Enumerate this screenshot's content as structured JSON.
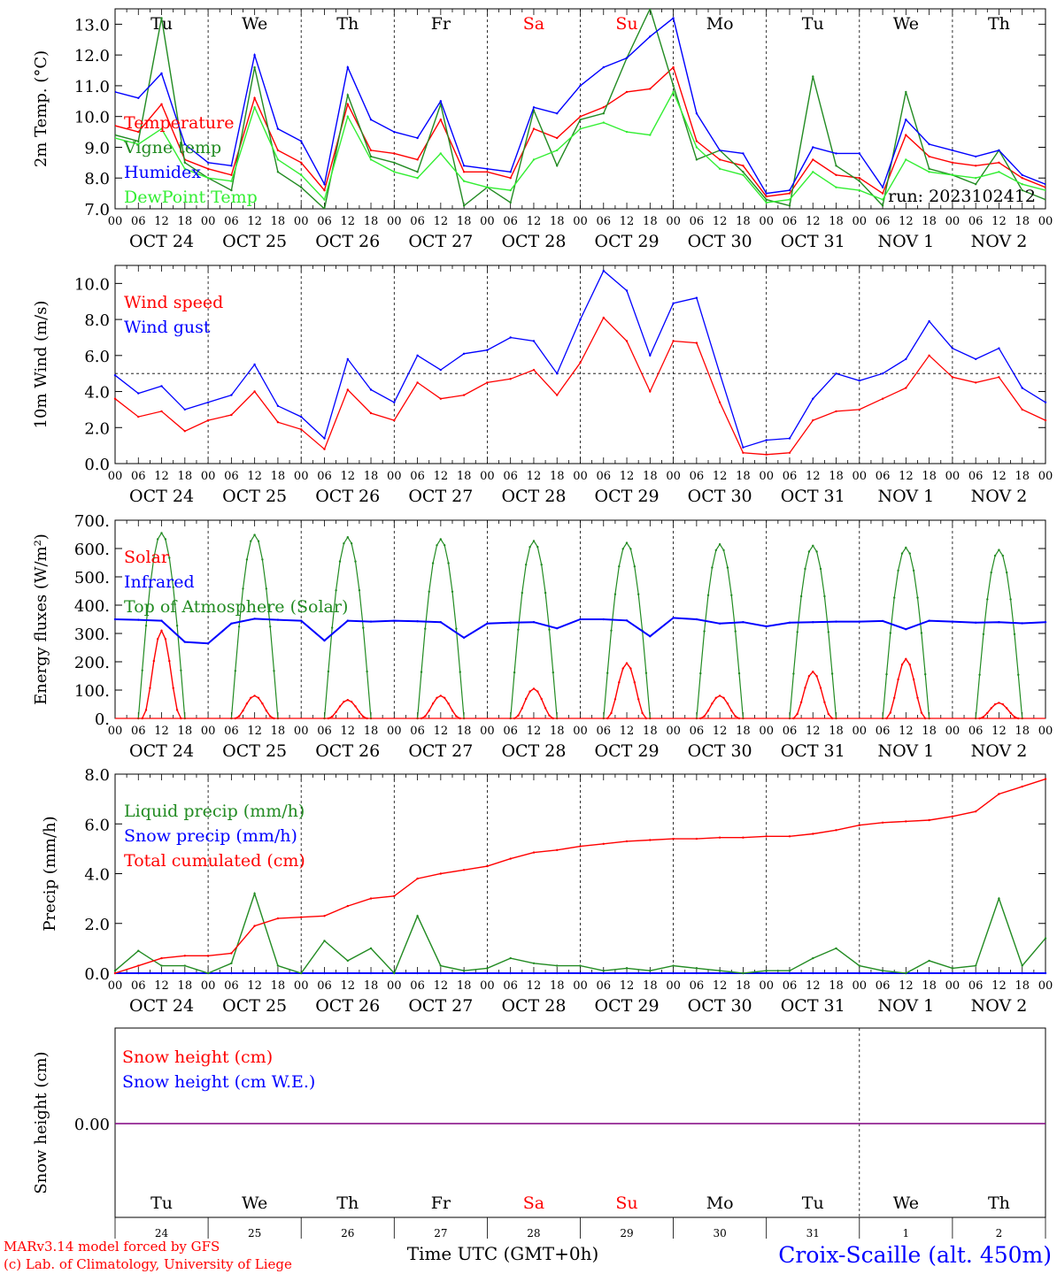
{
  "weekdays": [
    {
      "label": "Tu",
      "weekend": false
    },
    {
      "label": "We",
      "weekend": false
    },
    {
      "label": "Th",
      "weekend": false
    },
    {
      "label": "Fr",
      "weekend": false
    },
    {
      "label": "Sa",
      "weekend": true
    },
    {
      "label": "Su",
      "weekend": true
    },
    {
      "label": "Mo",
      "weekend": false
    },
    {
      "label": "Tu",
      "weekend": false
    },
    {
      "label": "We",
      "weekend": false
    },
    {
      "label": "Th",
      "weekend": false
    }
  ],
  "dates": [
    "OCT 24",
    "OCT 25",
    "OCT 26",
    "OCT 27",
    "OCT 28",
    "OCT 29",
    "OCT 30",
    "OCT 31",
    "NOV  1",
    "NOV  2"
  ],
  "day_numbers": [
    "24",
    "25",
    "26",
    "27",
    "28",
    "29",
    "30",
    "31",
    "1",
    "2"
  ],
  "hour_ticks": [
    "00",
    "06",
    "12",
    "18"
  ],
  "run_label": "run: 2023102412",
  "footer": {
    "credit_line1": "MARv3.14 model forced by GFS",
    "credit_line2": "(c) Lab. of Climatology, University of Liege",
    "time_label": "Time UTC (GMT+0h)",
    "station": "Croix-Scaille (alt. 450m)"
  },
  "colors": {
    "red": "#ff0000",
    "darkgreen": "#228b22",
    "blue": "#0000ff",
    "lightgreen": "#33ee33",
    "purple": "#800080",
    "weekend": "#ff0000"
  },
  "chart_data": [
    {
      "type": "line",
      "ylabel": "2m Temp. (°C)",
      "ylim": [
        7.0,
        13.5
      ],
      "yticks": [
        "7.0",
        "8.0",
        "9.0",
        "10.0",
        "11.0",
        "12.0",
        "13.0"
      ],
      "x_hours_from_oct24_00": [
        0,
        6,
        12,
        18,
        24,
        30,
        36,
        42,
        48,
        54,
        60,
        66,
        72,
        78,
        84,
        90,
        96,
        102,
        108,
        114,
        120,
        126,
        132,
        138,
        144,
        150,
        156,
        162,
        168,
        174,
        180,
        186,
        192,
        198,
        204,
        210,
        216,
        222,
        228,
        234,
        240
      ],
      "series": [
        {
          "name": "Temperature",
          "color": "red",
          "values": [
            9.7,
            9.5,
            10.4,
            8.6,
            8.3,
            8.1,
            10.6,
            8.9,
            8.5,
            7.6,
            10.4,
            8.9,
            8.8,
            8.6,
            9.9,
            8.2,
            8.2,
            8.0,
            9.6,
            9.3,
            10.0,
            10.3,
            10.8,
            10.9,
            11.6,
            9.2,
            8.6,
            8.4,
            7.4,
            7.5,
            8.6,
            8.1,
            8.0,
            7.5,
            9.4,
            8.7,
            8.5,
            8.4,
            8.5,
            8.0,
            7.7
          ]
        },
        {
          "name": "Vigne temp",
          "color": "darkgreen",
          "values": [
            9.4,
            9.2,
            13.2,
            8.5,
            8.0,
            7.6,
            11.6,
            8.2,
            7.7,
            7.0,
            10.7,
            8.7,
            8.5,
            8.2,
            10.4,
            7.1,
            7.7,
            7.2,
            10.2,
            8.4,
            9.9,
            10.1,
            11.9,
            13.5,
            11.0,
            8.6,
            8.9,
            8.2,
            7.3,
            7.1,
            11.3,
            8.4,
            7.9,
            7.1,
            10.8,
            8.3,
            8.1,
            7.8,
            8.9,
            7.6,
            7.3
          ]
        },
        {
          "name": "Humidex",
          "color": "blue",
          "values": [
            10.8,
            10.6,
            11.4,
            9.1,
            8.5,
            8.4,
            12.0,
            9.6,
            9.2,
            7.8,
            11.6,
            9.9,
            9.5,
            9.3,
            10.5,
            8.4,
            8.3,
            8.2,
            10.3,
            10.1,
            11.0,
            11.6,
            11.9,
            12.6,
            13.2,
            10.1,
            8.9,
            8.8,
            7.5,
            7.6,
            9.0,
            8.8,
            8.8,
            7.7,
            9.9,
            9.1,
            8.9,
            8.7,
            8.9,
            8.1,
            7.8
          ]
        },
        {
          "name": "DewPoint Temp",
          "color": "lightgreen",
          "values": [
            9.3,
            9.1,
            9.6,
            8.3,
            8.0,
            7.9,
            10.3,
            8.6,
            8.1,
            7.3,
            10.0,
            8.6,
            8.2,
            8.0,
            8.8,
            7.9,
            7.7,
            7.6,
            8.6,
            8.9,
            9.6,
            9.8,
            9.5,
            9.4,
            10.8,
            9.0,
            8.3,
            8.1,
            7.2,
            7.3,
            8.2,
            7.7,
            7.6,
            7.3,
            8.6,
            8.2,
            8.1,
            8.0,
            8.2,
            7.8,
            7.6
          ]
        }
      ]
    },
    {
      "type": "line",
      "ylabel": "10m Wind (m/s)",
      "ylim": [
        0.0,
        11.0
      ],
      "yticks": [
        "0.0",
        "2.0",
        "4.0",
        "6.0",
        "8.0",
        "10.0"
      ],
      "reference_line": 5.0,
      "x_hours_from_oct24_00": [
        0,
        6,
        12,
        18,
        24,
        30,
        36,
        42,
        48,
        54,
        60,
        66,
        72,
        78,
        84,
        90,
        96,
        102,
        108,
        114,
        120,
        126,
        132,
        138,
        144,
        150,
        156,
        162,
        168,
        174,
        180,
        186,
        192,
        198,
        204,
        210,
        216,
        222,
        228,
        234,
        240
      ],
      "series": [
        {
          "name": "Wind speed",
          "color": "red",
          "values": [
            3.6,
            2.6,
            2.9,
            1.8,
            2.4,
            2.7,
            4.0,
            2.3,
            1.9,
            0.8,
            4.1,
            2.8,
            2.4,
            4.5,
            3.6,
            3.8,
            4.5,
            4.7,
            5.2,
            3.8,
            5.6,
            8.1,
            6.8,
            4.0,
            6.8,
            6.7,
            3.4,
            0.6,
            0.5,
            0.6,
            2.4,
            2.9,
            3.0,
            3.6,
            4.2,
            6.0,
            4.8,
            4.5,
            4.8,
            3.0,
            2.4
          ]
        },
        {
          "name": "Wind gust",
          "color": "blue",
          "values": [
            4.9,
            3.9,
            4.3,
            3.0,
            3.4,
            3.8,
            5.5,
            3.2,
            2.6,
            1.4,
            5.8,
            4.1,
            3.4,
            6.0,
            5.2,
            6.1,
            6.3,
            7.0,
            6.8,
            5.0,
            8.0,
            10.7,
            9.6,
            6.0,
            8.9,
            9.2,
            5.0,
            0.9,
            1.3,
            1.4,
            3.6,
            5.0,
            4.6,
            5.0,
            5.8,
            7.9,
            6.4,
            5.8,
            6.4,
            4.2,
            3.4
          ]
        }
      ]
    },
    {
      "type": "line",
      "ylabel": "Energy fluxes (W/m²)",
      "ylim": [
        0,
        700
      ],
      "yticks": [
        "0.",
        "100.",
        "200.",
        "300.",
        "400.",
        "500.",
        "600.",
        "700."
      ],
      "series": [
        {
          "name": "Solar",
          "color": "red",
          "daily_peak_values": [
            310,
            80,
            65,
            80,
            105,
            195,
            80,
            165,
            210,
            55
          ]
        },
        {
          "name": "Infrared",
          "color": "blue",
          "x_hours_from_oct24_00": [
            0,
            6,
            12,
            18,
            24,
            30,
            36,
            42,
            48,
            54,
            60,
            66,
            72,
            78,
            84,
            90,
            96,
            102,
            108,
            114,
            120,
            126,
            132,
            138,
            144,
            150,
            156,
            162,
            168,
            174,
            180,
            186,
            192,
            198,
            204,
            210,
            216,
            222,
            228,
            234,
            240
          ],
          "values": [
            350,
            348,
            345,
            270,
            265,
            335,
            352,
            348,
            345,
            275,
            345,
            342,
            345,
            343,
            340,
            285,
            335,
            338,
            340,
            318,
            350,
            350,
            346,
            290,
            355,
            350,
            335,
            340,
            325,
            338,
            340,
            342,
            342,
            344,
            315,
            345,
            342,
            338,
            340,
            336,
            340
          ]
        },
        {
          "name": "Top of Atmosphere (Solar)",
          "color": "darkgreen",
          "daily_peak_values": [
            655,
            648,
            640,
            633,
            627,
            620,
            615,
            610,
            603,
            595
          ]
        }
      ]
    },
    {
      "type": "line",
      "ylabel": "Precip (mm/h)",
      "ylim": [
        0.0,
        8.0
      ],
      "yticks": [
        "0.0",
        "2.0",
        "4.0",
        "6.0",
        "8.0"
      ],
      "x_hours_from_oct24_00": [
        0,
        6,
        12,
        18,
        24,
        30,
        36,
        42,
        48,
        54,
        60,
        66,
        72,
        78,
        84,
        90,
        96,
        102,
        108,
        114,
        120,
        126,
        132,
        138,
        144,
        150,
        156,
        162,
        168,
        174,
        180,
        186,
        192,
        198,
        204,
        210,
        216,
        222,
        228,
        234,
        240
      ],
      "series": [
        {
          "name": "Liquid precip (mm/h)",
          "color": "darkgreen",
          "values": [
            0.1,
            0.9,
            0.3,
            0.3,
            0.0,
            0.4,
            3.2,
            0.3,
            0.0,
            1.3,
            0.5,
            1.0,
            0.0,
            2.3,
            0.3,
            0.1,
            0.2,
            0.6,
            0.4,
            0.3,
            0.3,
            0.1,
            0.2,
            0.1,
            0.3,
            0.2,
            0.1,
            0.0,
            0.1,
            0.1,
            0.6,
            1.0,
            0.3,
            0.1,
            0.0,
            0.5,
            0.2,
            0.3,
            3.0,
            0.3,
            1.4
          ]
        },
        {
          "name": "Snow precip (mm/h)",
          "color": "blue",
          "values": [
            0.0,
            0.0,
            0.0,
            0.0,
            0.0,
            0.0,
            0.0,
            0.0,
            0.0,
            0.0,
            0.0,
            0.0,
            0.0,
            0.0,
            0.0,
            0.0,
            0.0,
            0.0,
            0.0,
            0.0,
            0.0,
            0.0,
            0.0,
            0.0,
            0.0,
            0.0,
            0.0,
            0.0,
            0.0,
            0.0,
            0.0,
            0.0,
            0.0,
            0.0,
            0.0,
            0.0,
            0.0,
            0.0,
            0.0,
            0.0,
            0.0
          ]
        },
        {
          "name": "Total cumulated (cm)",
          "color": "red",
          "values": [
            0.0,
            0.3,
            0.6,
            0.7,
            0.7,
            0.8,
            1.9,
            2.2,
            2.25,
            2.3,
            2.7,
            3.0,
            3.1,
            3.8,
            4.0,
            4.15,
            4.3,
            4.6,
            4.85,
            4.95,
            5.1,
            5.2,
            5.3,
            5.35,
            5.4,
            5.4,
            5.45,
            5.45,
            5.5,
            5.5,
            5.6,
            5.75,
            5.95,
            6.05,
            6.1,
            6.15,
            6.3,
            6.5,
            7.2,
            7.5,
            7.8
          ]
        }
      ]
    },
    {
      "type": "line",
      "ylabel": "Snow height (cm)",
      "yticks": [
        "0.00"
      ],
      "series": [
        {
          "name": "Snow height (cm)",
          "color": "red",
          "values": [
            0.0,
            0.0
          ]
        },
        {
          "name": "Snow height (cm W.E.)",
          "color": "blue",
          "values": [
            0.0,
            0.0
          ]
        }
      ]
    }
  ]
}
